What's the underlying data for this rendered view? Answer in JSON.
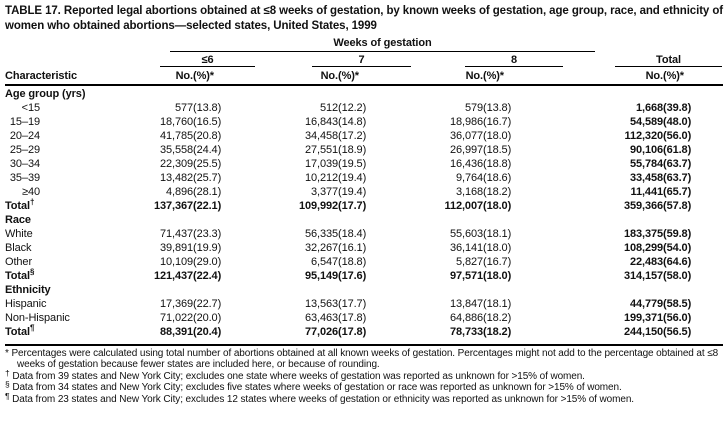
{
  "table": {
    "title": "TABLE 17. Reported legal abortions obtained at ≤8 weeks of gestation, by known weeks of gestation, age group, race, and ethnicity of women who obtained abortions—selected states, United States, 1999",
    "header": {
      "characteristic": "Characteristic",
      "weeks_span": "Weeks of gestation",
      "groups": [
        "≤6",
        "7",
        "8",
        "Total"
      ],
      "no": "No.",
      "pct": "(%)*"
    },
    "rows": [
      {
        "type": "section",
        "label": "Age group (yrs)"
      },
      {
        "type": "data",
        "label": "<15",
        "label_style": "age",
        "marker": "",
        "bold": false,
        "cells": [
          "577",
          "(13.8)",
          "512",
          "(12.2)",
          "579",
          "(13.8)",
          "1,668",
          "(39.8)"
        ]
      },
      {
        "type": "data",
        "label": "15–19",
        "label_style": "age",
        "marker": "",
        "bold": false,
        "cells": [
          "18,760",
          "(16.5)",
          "16,843",
          "(14.8)",
          "18,986",
          "(16.7)",
          "54,589",
          "(48.0)"
        ]
      },
      {
        "type": "data",
        "label": "20–24",
        "label_style": "age",
        "marker": "",
        "bold": false,
        "cells": [
          "41,785",
          "(20.8)",
          "34,458",
          "(17.2)",
          "36,077",
          "(18.0)",
          "112,320",
          "(56.0)"
        ]
      },
      {
        "type": "data",
        "label": "25–29",
        "label_style": "age",
        "marker": "",
        "bold": false,
        "cells": [
          "35,558",
          "(24.4)",
          "27,551",
          "(18.9)",
          "26,997",
          "(18.5)",
          "90,106",
          "(61.8)"
        ]
      },
      {
        "type": "data",
        "label": "30–34",
        "label_style": "age",
        "marker": "",
        "bold": false,
        "cells": [
          "22,309",
          "(25.5)",
          "17,039",
          "(19.5)",
          "16,436",
          "(18.8)",
          "55,784",
          "(63.7)"
        ]
      },
      {
        "type": "data",
        "label": "35–39",
        "label_style": "age",
        "marker": "",
        "bold": false,
        "cells": [
          "13,482",
          "(25.7)",
          "10,212",
          "(19.4)",
          "9,764",
          "(18.6)",
          "33,458",
          "(63.7)"
        ]
      },
      {
        "type": "data",
        "label": "≥40",
        "label_style": "age",
        "marker": "",
        "bold": false,
        "cells": [
          "4,896",
          "(28.1)",
          "3,377",
          "(19.4)",
          "3,168",
          "(18.2)",
          "11,441",
          "(65.7)"
        ]
      },
      {
        "type": "data",
        "label": "Total",
        "label_style": "plain",
        "marker": "†",
        "bold": true,
        "cells": [
          "137,367",
          "(22.1)",
          "109,992",
          "(17.7)",
          "112,007",
          "(18.0)",
          "359,366",
          "(57.8)"
        ]
      },
      {
        "type": "section",
        "label": "Race"
      },
      {
        "type": "data",
        "label": "White",
        "label_style": "plain",
        "marker": "",
        "bold": false,
        "cells": [
          "71,437",
          "(23.3)",
          "56,335",
          "(18.4)",
          "55,603",
          "(18.1)",
          "183,375",
          "(59.8)"
        ]
      },
      {
        "type": "data",
        "label": "Black",
        "label_style": "plain",
        "marker": "",
        "bold": false,
        "cells": [
          "39,891",
          "(19.9)",
          "32,267",
          "(16.1)",
          "36,141",
          "(18.0)",
          "108,299",
          "(54.0)"
        ]
      },
      {
        "type": "data",
        "label": "Other",
        "label_style": "plain",
        "marker": "",
        "bold": false,
        "cells": [
          "10,109",
          "(29.0)",
          "6,547",
          "(18.8)",
          "5,827",
          "(16.7)",
          "22,483",
          "(64.6)"
        ]
      },
      {
        "type": "data",
        "label": "Total",
        "label_style": "plain",
        "marker": "§",
        "bold": true,
        "cells": [
          "121,437",
          "(22.4)",
          "95,149",
          "(17.6)",
          "97,571",
          "(18.0)",
          "314,157",
          "(58.0)"
        ]
      },
      {
        "type": "section",
        "label": "Ethnicity"
      },
      {
        "type": "data",
        "label": "Hispanic",
        "label_style": "plain",
        "marker": "",
        "bold": false,
        "cells": [
          "17,369",
          "(22.7)",
          "13,563",
          "(17.7)",
          "13,847",
          "(18.1)",
          "44,779",
          "(58.5)"
        ]
      },
      {
        "type": "data",
        "label": "Non-Hispanic",
        "label_style": "plain",
        "marker": "",
        "bold": false,
        "cells": [
          "71,022",
          "(20.0)",
          "63,463",
          "(17.8)",
          "64,886",
          "(18.2)",
          "199,371",
          "(56.0)"
        ]
      },
      {
        "type": "data",
        "label": "Total",
        "label_style": "plain",
        "marker": "¶",
        "bold": true,
        "cells": [
          "88,391",
          "(20.4)",
          "77,026",
          "(17.8)",
          "78,733",
          "(18.2)",
          "244,150",
          "(56.5)"
        ]
      }
    ],
    "footnotes": [
      {
        "marker": "*",
        "raised": false,
        "text": "Percentages were calculated using total number of abortions obtained at all known weeks of gestation. Percentages might not add to the percentage obtained at ≤8 weeks of gestation because fewer states are included here, or because of rounding."
      },
      {
        "marker": "†",
        "raised": true,
        "text": "Data from 39 states and New York City; excludes one state where weeks of gestation was reported as unknown for >15% of women."
      },
      {
        "marker": "§",
        "raised": true,
        "text": "Data from 34 states and New York City; excludes five states where weeks of gestation or race was reported as unknown for >15% of women."
      },
      {
        "marker": "¶",
        "raised": true,
        "text": "Data from 23 states and New York City; excludes 12 states where weeks of gestation or ethnicity was reported as unknown for >15% of women."
      }
    ]
  }
}
